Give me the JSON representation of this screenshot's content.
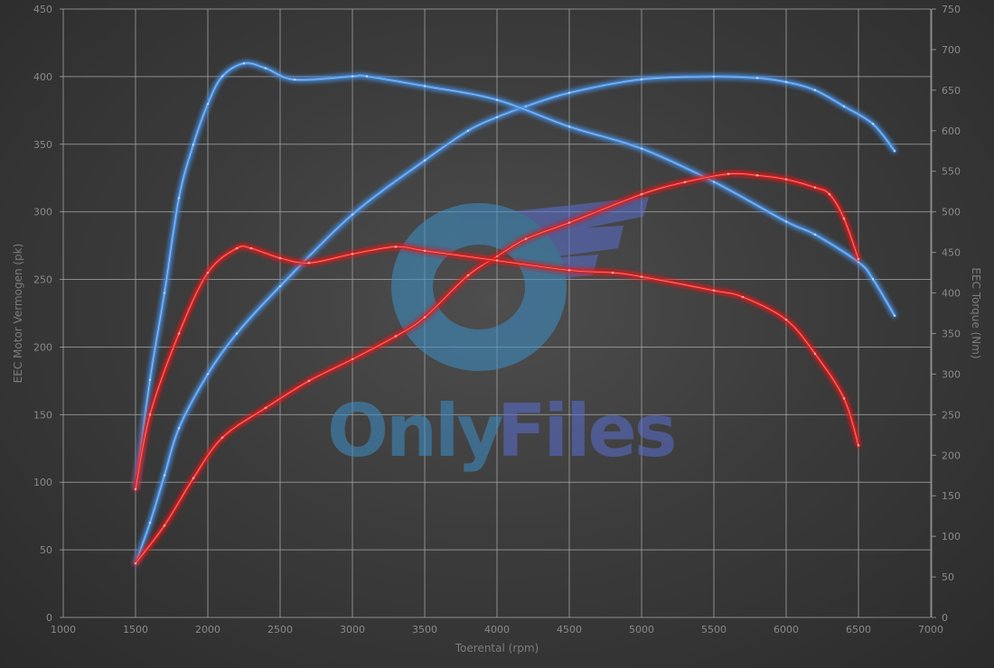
{
  "chart_data": {
    "type": "line",
    "title": "",
    "xlabel": "Toerental (rpm)",
    "ylabel_left": "EEC Motor Vermogen (pk)",
    "ylabel_right": "EEC Torque (Nm)",
    "xlim": [
      1000,
      7000
    ],
    "ylim_left": [
      0,
      450
    ],
    "ylim_right": [
      0,
      750
    ],
    "x_ticks": [
      1000,
      1500,
      2000,
      2500,
      3000,
      3500,
      4000,
      4500,
      5000,
      5500,
      6000,
      6500,
      7000
    ],
    "y_ticks_left": [
      0,
      50,
      100,
      150,
      200,
      250,
      300,
      350,
      400,
      450
    ],
    "y_ticks_right": [
      0,
      50,
      100,
      150,
      200,
      250,
      300,
      350,
      400,
      450,
      500,
      550,
      600,
      650,
      700,
      750
    ],
    "grid": true,
    "legend": "none",
    "series": [
      {
        "axis": "left",
        "color": "#4a90e2",
        "x": [
          1500,
          1600,
          1700,
          1800,
          2000,
          2200,
          2500,
          3000,
          3500,
          3800,
          4000,
          4200,
          4500,
          5000,
          5500,
          5800,
          6000,
          6200,
          6400,
          6600,
          6750
        ],
        "y": [
          40,
          70,
          105,
          140,
          180,
          210,
          245,
          298,
          338,
          360,
          370,
          378,
          388,
          398,
          400,
          399,
          396,
          390,
          378,
          365,
          345
        ]
      },
      {
        "axis": "right",
        "color": "#4a90e2",
        "x": [
          1500,
          1600,
          1700,
          1800,
          1900,
          2000,
          2100,
          2250,
          2400,
          2600,
          3000,
          3100,
          3500,
          4000,
          4500,
          5000,
          5500,
          6000,
          6200,
          6500,
          6600,
          6750
        ],
        "y": [
          160,
          293,
          400,
          517,
          583,
          633,
          667,
          683,
          677,
          663,
          667,
          667,
          655,
          638,
          605,
          578,
          537,
          488,
          472,
          438,
          417,
          372
        ]
      },
      {
        "axis": "left",
        "color": "#e02020",
        "x": [
          1500,
          1700,
          1900,
          2100,
          2400,
          2700,
          3000,
          3300,
          3500,
          3800,
          4000,
          4200,
          4500,
          5000,
          5300,
          5600,
          5800,
          6000,
          6200,
          6300,
          6400,
          6500
        ],
        "y": [
          40,
          68,
          103,
          133,
          155,
          175,
          191,
          208,
          222,
          253,
          267,
          280,
          292,
          313,
          322,
          328,
          327,
          324,
          318,
          313,
          295,
          265
        ]
      },
      {
        "axis": "right",
        "color": "#e02020",
        "x": [
          1500,
          1600,
          1800,
          2000,
          2200,
          2300,
          2500,
          2700,
          3000,
          3300,
          3500,
          4000,
          4500,
          4800,
          5000,
          5500,
          5700,
          6000,
          6200,
          6400,
          6500
        ],
        "y": [
          158,
          250,
          350,
          425,
          455,
          455,
          443,
          437,
          448,
          457,
          452,
          440,
          428,
          425,
          420,
          403,
          395,
          367,
          325,
          270,
          212
        ]
      }
    ]
  },
  "watermark": {
    "text_only": "Only",
    "text_files": "Files"
  }
}
